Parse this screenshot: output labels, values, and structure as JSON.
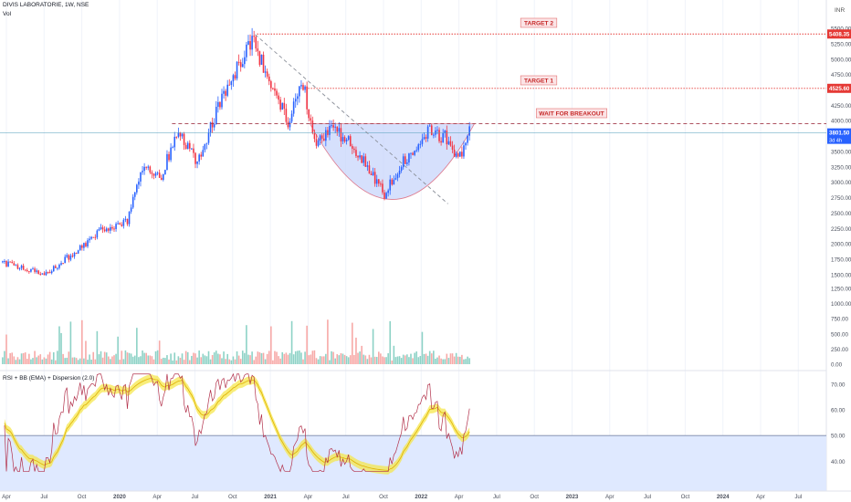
{
  "header": {
    "title": "DIVIS LABORATORIE, 1W, NSE",
    "volume_label": "Vol",
    "currency": "INR",
    "rsi_label": "RSI + BB (EMA) + Dispersion (2.0)"
  },
  "annotations": {
    "target2": "TARGET 2",
    "target1": "TARGET 1",
    "breakout": "WAIT FOR BREAKOUT"
  },
  "price_badges": {
    "target2": "5408.35",
    "target1": "4525.60",
    "last_price": "3801.50",
    "countdown": "3d 4h"
  },
  "colors": {
    "up": "#2962ff",
    "down": "#f23645",
    "volume_up": "#8dd2c6",
    "volume_down": "#f7a9a7",
    "target_line": "#e53935",
    "pattern_fill": "#c9d6fb",
    "rsi_band": "#f5e642",
    "rsi_zone": "#dfe9ff"
  },
  "chart_data": [
    {
      "type": "candlestick",
      "x_tick_labels": [
        "Apr",
        "Jul",
        "Oct",
        "2020",
        "Apr",
        "Jul",
        "Oct",
        "2021",
        "Apr",
        "Jul",
        "Oct",
        "2022",
        "Apr",
        "Jul",
        "Oct",
        "2023",
        "Apr",
        "Jul",
        "Oct",
        "2024",
        "Apr",
        "Jul"
      ],
      "y_tick_labels": [
        "5500.00",
        "5250.00",
        "5000.00",
        "4750.00",
        "4500.00",
        "4250.00",
        "4000.00",
        "3750.00",
        "3500.00",
        "3250.00",
        "3000.00",
        "2750.00",
        "2500.00",
        "2250.00",
        "2000.00",
        "1750.00",
        "1500.00",
        "1250.00",
        "1000.00",
        "750.00",
        "500.00",
        "250.00",
        "0.00"
      ],
      "ylim": [
        0,
        5600
      ],
      "anchor_path": [
        [
          "2019-03-25",
          1700
        ],
        [
          "2019-08-26",
          1500
        ],
        [
          "2019-12-30",
          1900
        ],
        [
          "2020-03-30",
          2250
        ],
        [
          "2020-06-29",
          2350
        ],
        [
          "2020-08-17",
          3200
        ],
        [
          "2020-11-02",
          3100
        ],
        [
          "2020-12-28",
          3800
        ],
        [
          "2021-03-15",
          3350
        ],
        [
          "2021-06-28",
          4500
        ],
        [
          "2021-09-27",
          5200
        ],
        [
          "2021-10-04",
          5300
        ],
        [
          "2021-12-27",
          4500
        ],
        [
          "2022-02-14",
          4000
        ],
        [
          "2022-04-11",
          4600
        ],
        [
          "2022-05-23",
          3600
        ],
        [
          "2022-08-01",
          3900
        ],
        [
          "2022-10-31",
          3500
        ],
        [
          "2023-02-06",
          2800
        ],
        [
          "2023-04-10",
          3300
        ],
        [
          "2023-07-17",
          3850
        ],
        [
          "2023-10-02",
          3700
        ],
        [
          "2023-11-06",
          3350
        ],
        [
          "2023-12-18",
          3800
        ]
      ],
      "levels": {
        "target2": 5408.35,
        "target1": 4525.6,
        "neckline": 3950,
        "last_price": 3801.5
      },
      "trendline": [
        [
          "2021-10-18",
          5400
        ],
        [
          "2023-10-02",
          2650
        ]
      ],
      "cup": {
        "start": "2022-05-09",
        "end": "2024-01-08",
        "rim": 3950,
        "bottom": 2720
      }
    },
    {
      "type": "bar",
      "name": "Vol",
      "y_tick_labels": [
        "1250.00",
        "1000.00",
        "750.00",
        "500.00",
        "250.00",
        "0.00"
      ],
      "ylim": [
        0,
        1600
      ]
    },
    {
      "type": "line",
      "name": "RSI + BB (EMA) + Dispersion (2.0)",
      "y_tick_labels": [
        "70.00",
        "60.00",
        "50.00",
        "40.00"
      ],
      "threshold": 50,
      "ylim": [
        35,
        76
      ]
    }
  ]
}
